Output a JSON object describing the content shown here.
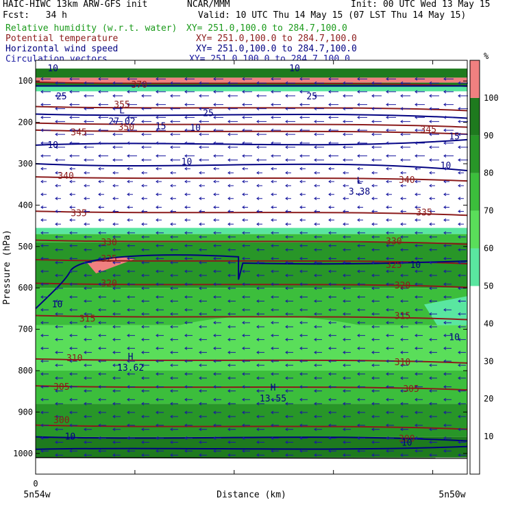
{
  "header": {
    "model": "HAIC-HIWC 13km ARW-GFS init",
    "center": "NCAR/MMM",
    "init": "Init: 00 UTC Wed 13 May 15",
    "fcst": "Fcst:   34 h",
    "valid": "Valid: 10 UTC Thu 14 May 15 (07 LST Thu 14 May 15)",
    "fields": [
      {
        "name": "Relative humidity (w.r.t. water)",
        "xy": "XY= 251.0,100.0 to 284.7,100.0",
        "color": "#1a9a1a"
      },
      {
        "name": "Potential temperature",
        "xy": "XY= 251.0,100.0 to 284.7,100.0",
        "color": "#8b1a1a"
      },
      {
        "name": "Horizontal wind speed",
        "xy": "XY= 251.0,100.0 to 284.7,100.0",
        "color": "#000080"
      },
      {
        "name": "Circulation vectors",
        "xy": "XY= 251.0,100.0 to 284.7,100.0",
        "color": "#1a1aa0"
      }
    ]
  },
  "chart_data": {
    "type": "heatmap",
    "xlabel": "Distance (km)",
    "ylabel": "Pressure (hPa)",
    "x_ticks": [
      "0"
    ],
    "x_endpoints": [
      "5n54w",
      "5n50w"
    ],
    "y_ticks": [
      100,
      200,
      300,
      400,
      500,
      600,
      700,
      800,
      900,
      1000
    ],
    "ylim": [
      1050,
      50
    ],
    "colorbar": {
      "unit": "%",
      "ticks": [
        10,
        20,
        30,
        40,
        50,
        60,
        70,
        80,
        90,
        100
      ],
      "bins": [
        {
          "range": [
            50,
            60
          ],
          "color": "#5ae6a0"
        },
        {
          "range": [
            60,
            70
          ],
          "color": "#5ade5a"
        },
        {
          "range": [
            70,
            80
          ],
          "color": "#3cbe3c"
        },
        {
          "range": [
            80,
            90
          ],
          "color": "#289628"
        },
        {
          "range": [
            90,
            100
          ],
          "color": "#1e7a1e"
        },
        {
          "range": [
            100,
            110
          ],
          "color": "#f08080"
        }
      ]
    },
    "rh_layers": [
      {
        "p_top": 70,
        "p_bot": 92,
        "rh": 95
      },
      {
        "p_top": 92,
        "p_bot": 104,
        "rh": 105
      },
      {
        "p_top": 104,
        "p_bot": 112,
        "rh": 92
      },
      {
        "p_top": 112,
        "p_bot": 125,
        "rh": 55
      },
      {
        "p_top": 455,
        "p_bot": 470,
        "rh": 55
      },
      {
        "p_top": 470,
        "p_bot": 490,
        "rh": 75
      },
      {
        "p_top": 490,
        "p_bot": 600,
        "rh": 85
      },
      {
        "p_top": 600,
        "p_bot": 690,
        "rh": 75
      },
      {
        "p_top": 690,
        "p_bot": 800,
        "rh": 65
      },
      {
        "p_top": 800,
        "p_bot": 880,
        "rh": 75
      },
      {
        "p_top": 880,
        "p_bot": 960,
        "rh": 85
      },
      {
        "p_top": 960,
        "p_bot": 1010,
        "rh": 95
      }
    ],
    "theta_labels": [
      {
        "value": "370",
        "x": 0.24,
        "p": 110
      },
      {
        "value": "355",
        "x": 0.2,
        "p": 158
      },
      {
        "value": "350",
        "x": 0.21,
        "p": 212
      },
      {
        "value": "345",
        "x": 0.1,
        "p": 225
      },
      {
        "value": "345",
        "x": 0.91,
        "p": 218
      },
      {
        "value": "340",
        "x": 0.07,
        "p": 330
      },
      {
        "value": "340",
        "x": 0.86,
        "p": 340
      },
      {
        "value": "335",
        "x": 0.1,
        "p": 420
      },
      {
        "value": "335",
        "x": 0.9,
        "p": 418
      },
      {
        "value": "330",
        "x": 0.17,
        "p": 490
      },
      {
        "value": "330",
        "x": 0.83,
        "p": 488
      },
      {
        "value": "325",
        "x": 0.17,
        "p": 530
      },
      {
        "value": "325",
        "x": 0.83,
        "p": 545
      },
      {
        "value": "320",
        "x": 0.17,
        "p": 590
      },
      {
        "value": "320",
        "x": 0.85,
        "p": 595
      },
      {
        "value": "315",
        "x": 0.12,
        "p": 675
      },
      {
        "value": "315",
        "x": 0.85,
        "p": 668
      },
      {
        "value": "310",
        "x": 0.09,
        "p": 770
      },
      {
        "value": "310",
        "x": 0.85,
        "p": 780
      },
      {
        "value": "305",
        "x": 0.06,
        "p": 840
      },
      {
        "value": "305",
        "x": 0.87,
        "p": 845
      },
      {
        "value": "300",
        "x": 0.06,
        "p": 920
      },
      {
        "value": "300",
        "x": 0.86,
        "p": 965
      }
    ],
    "wind_labels": [
      {
        "value": "10",
        "x": 0.04,
        "p": 70
      },
      {
        "value": "10",
        "x": 0.6,
        "p": 70
      },
      {
        "value": "25",
        "x": 0.06,
        "p": 138
      },
      {
        "value": "25",
        "x": 0.64,
        "p": 138
      },
      {
        "value": "25",
        "x": 0.4,
        "p": 178
      },
      {
        "value": "15",
        "x": 0.29,
        "p": 210
      },
      {
        "value": "10",
        "x": 0.37,
        "p": 214
      },
      {
        "value": "10",
        "x": 0.04,
        "p": 255
      },
      {
        "value": "10",
        "x": 0.35,
        "p": 296
      },
      {
        "value": "10",
        "x": 0.95,
        "p": 305
      },
      {
        "value": "15",
        "x": 0.97,
        "p": 235
      },
      {
        "value": "10",
        "x": 0.05,
        "p": 640
      },
      {
        "value": "10",
        "x": 0.88,
        "p": 545
      },
      {
        "value": "10",
        "x": 0.97,
        "p": 720
      },
      {
        "value": "10",
        "x": 0.08,
        "p": 960
      },
      {
        "value": "10",
        "x": 0.86,
        "p": 975
      }
    ],
    "extrema": [
      {
        "type": "H",
        "value": "13.62",
        "x": 0.22,
        "p": 780
      },
      {
        "type": "H",
        "value": "13.55",
        "x": 0.55,
        "p": 855
      },
      {
        "type": "L",
        "value": "3.38",
        "x": 0.75,
        "p": 355
      },
      {
        "type": "L",
        "value": "27.02",
        "x": 0.2,
        "p": 185
      }
    ]
  }
}
